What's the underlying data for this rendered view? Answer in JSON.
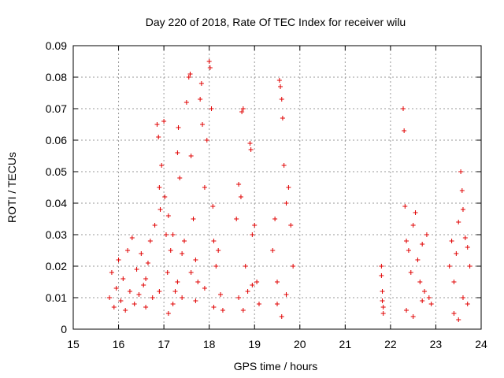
{
  "chart_data": {
    "type": "scatter",
    "title": "Day 220 of 2018, Rate Of TEC Index for receiver wilu",
    "xlabel": "GPS time / hours",
    "ylabel": "ROTI / TECUs",
    "xlim": [
      15,
      24
    ],
    "ylim": [
      0,
      0.09
    ],
    "xticks": [
      "15",
      "16",
      "17",
      "18",
      "19",
      "20",
      "21",
      "22",
      "23",
      "24"
    ],
    "yticks": [
      "0",
      "0.01",
      "0.02",
      "0.03",
      "0.04",
      "0.05",
      "0.06",
      "0.07",
      "0.08",
      "0.09"
    ],
    "grid": true,
    "marker": "+",
    "color": "#e00000",
    "series": [
      {
        "name": "wilu",
        "points": [
          [
            15.8,
            0.01
          ],
          [
            15.85,
            0.018
          ],
          [
            15.9,
            0.007
          ],
          [
            15.95,
            0.013
          ],
          [
            16.0,
            0.022
          ],
          [
            16.05,
            0.009
          ],
          [
            16.1,
            0.016
          ],
          [
            16.15,
            0.006
          ],
          [
            16.2,
            0.025
          ],
          [
            16.25,
            0.012
          ],
          [
            16.3,
            0.029
          ],
          [
            16.35,
            0.008
          ],
          [
            16.4,
            0.019
          ],
          [
            16.45,
            0.011
          ],
          [
            16.5,
            0.024
          ],
          [
            16.55,
            0.014
          ],
          [
            16.6,
            0.007
          ],
          [
            16.65,
            0.021
          ],
          [
            16.7,
            0.028
          ],
          [
            16.75,
            0.01
          ],
          [
            16.8,
            0.033
          ],
          [
            16.85,
            0.065
          ],
          [
            16.88,
            0.061
          ],
          [
            16.9,
            0.045
          ],
          [
            16.92,
            0.038
          ],
          [
            16.95,
            0.052
          ],
          [
            17.0,
            0.066
          ],
          [
            17.02,
            0.042
          ],
          [
            17.05,
            0.03
          ],
          [
            17.08,
            0.018
          ],
          [
            17.1,
            0.036
          ],
          [
            17.15,
            0.025
          ],
          [
            17.2,
            0.03
          ],
          [
            17.25,
            0.012
          ],
          [
            17.3,
            0.056
          ],
          [
            17.32,
            0.064
          ],
          [
            17.35,
            0.048
          ],
          [
            17.4,
            0.024
          ],
          [
            17.45,
            0.028
          ],
          [
            17.5,
            0.072
          ],
          [
            17.55,
            0.08
          ],
          [
            17.58,
            0.081
          ],
          [
            17.6,
            0.055
          ],
          [
            17.65,
            0.035
          ],
          [
            17.7,
            0.022
          ],
          [
            17.75,
            0.015
          ],
          [
            17.8,
            0.073
          ],
          [
            17.83,
            0.078
          ],
          [
            17.85,
            0.065
          ],
          [
            17.9,
            0.045
          ],
          [
            17.95,
            0.06
          ],
          [
            18.0,
            0.085
          ],
          [
            18.02,
            0.083
          ],
          [
            18.05,
            0.07
          ],
          [
            18.08,
            0.039
          ],
          [
            18.1,
            0.028
          ],
          [
            18.15,
            0.02
          ],
          [
            18.2,
            0.025
          ],
          [
            18.25,
            0.011
          ],
          [
            18.3,
            0.006
          ],
          [
            17.2,
            0.008
          ],
          [
            17.3,
            0.015
          ],
          [
            17.4,
            0.01
          ],
          [
            17.6,
            0.018
          ],
          [
            17.7,
            0.009
          ],
          [
            17.9,
            0.013
          ],
          [
            18.1,
            0.007
          ],
          [
            16.6,
            0.016
          ],
          [
            16.9,
            0.012
          ],
          [
            17.1,
            0.005
          ],
          [
            18.6,
            0.035
          ],
          [
            18.65,
            0.046
          ],
          [
            18.7,
            0.042
          ],
          [
            18.72,
            0.069
          ],
          [
            18.75,
            0.07
          ],
          [
            18.8,
            0.02
          ],
          [
            18.85,
            0.012
          ],
          [
            18.9,
            0.059
          ],
          [
            18.92,
            0.057
          ],
          [
            18.95,
            0.03
          ],
          [
            19.0,
            0.033
          ],
          [
            19.05,
            0.015
          ],
          [
            19.1,
            0.008
          ],
          [
            18.65,
            0.01
          ],
          [
            18.75,
            0.006
          ],
          [
            18.95,
            0.014
          ],
          [
            19.4,
            0.025
          ],
          [
            19.45,
            0.035
          ],
          [
            19.5,
            0.015
          ],
          [
            19.55,
            0.079
          ],
          [
            19.57,
            0.077
          ],
          [
            19.6,
            0.073
          ],
          [
            19.62,
            0.067
          ],
          [
            19.65,
            0.052
          ],
          [
            19.7,
            0.04
          ],
          [
            19.75,
            0.045
          ],
          [
            19.8,
            0.033
          ],
          [
            19.85,
            0.02
          ],
          [
            19.5,
            0.008
          ],
          [
            19.6,
            0.004
          ],
          [
            19.7,
            0.011
          ],
          [
            21.8,
            0.02
          ],
          [
            21.8,
            0.017
          ],
          [
            21.82,
            0.012
          ],
          [
            21.82,
            0.009
          ],
          [
            21.84,
            0.007
          ],
          [
            21.84,
            0.005
          ],
          [
            22.28,
            0.07
          ],
          [
            22.3,
            0.063
          ],
          [
            22.32,
            0.039
          ],
          [
            22.35,
            0.028
          ],
          [
            22.4,
            0.025
          ],
          [
            22.45,
            0.018
          ],
          [
            22.5,
            0.033
          ],
          [
            22.55,
            0.037
          ],
          [
            22.6,
            0.022
          ],
          [
            22.65,
            0.015
          ],
          [
            22.7,
            0.027
          ],
          [
            22.75,
            0.012
          ],
          [
            22.8,
            0.03
          ],
          [
            22.85,
            0.01
          ],
          [
            22.9,
            0.008
          ],
          [
            22.35,
            0.006
          ],
          [
            22.5,
            0.004
          ],
          [
            22.7,
            0.009
          ],
          [
            23.3,
            0.02
          ],
          [
            23.35,
            0.028
          ],
          [
            23.4,
            0.015
          ],
          [
            23.45,
            0.024
          ],
          [
            23.5,
            0.034
          ],
          [
            23.55,
            0.05
          ],
          [
            23.58,
            0.044
          ],
          [
            23.6,
            0.038
          ],
          [
            23.65,
            0.029
          ],
          [
            23.7,
            0.026
          ],
          [
            23.75,
            0.02
          ],
          [
            23.4,
            0.005
          ],
          [
            23.5,
            0.003
          ],
          [
            23.6,
            0.01
          ],
          [
            23.7,
            0.008
          ]
        ]
      }
    ]
  }
}
